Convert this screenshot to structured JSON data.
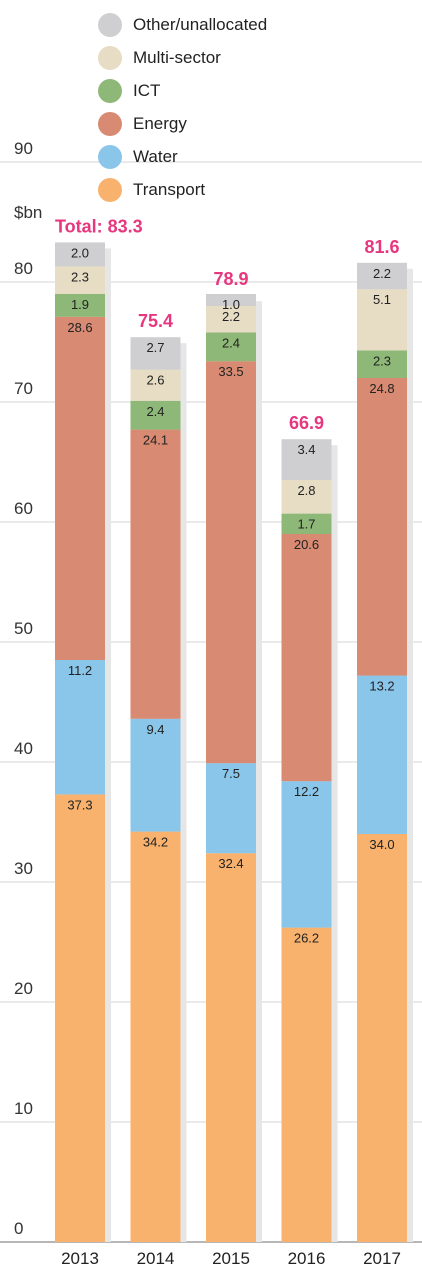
{
  "chart_data": {
    "type": "bar",
    "stacked": true,
    "unit_label": "$bn",
    "categories": [
      "2013",
      "2014",
      "2015",
      "2016",
      "2017"
    ],
    "series": [
      {
        "name": "Transport",
        "color": "#f8b26d",
        "values": [
          37.3,
          34.2,
          32.4,
          26.2,
          34.0
        ]
      },
      {
        "name": "Water",
        "color": "#8ac6ea",
        "values": [
          11.2,
          9.4,
          7.5,
          12.2,
          13.2
        ]
      },
      {
        "name": "Energy",
        "color": "#d88a72",
        "values": [
          28.6,
          24.1,
          33.5,
          20.6,
          24.8
        ]
      },
      {
        "name": "ICT",
        "color": "#8db877",
        "values": [
          1.9,
          2.4,
          2.4,
          1.7,
          2.3
        ]
      },
      {
        "name": "Multi-sector",
        "color": "#e7dcc4",
        "values": [
          2.3,
          2.6,
          2.2,
          2.8,
          5.1
        ]
      },
      {
        "name": "Other/unallocated",
        "color": "#cfcfd1",
        "values": [
          2.0,
          2.7,
          1.0,
          3.4,
          2.2
        ]
      }
    ],
    "totals": [
      "Total: 83.3",
      "75.4",
      "78.9",
      "66.9",
      "81.6"
    ],
    "total_values": [
      83.3,
      75.4,
      78.9,
      66.9,
      81.6
    ],
    "y_ticks": [
      "0",
      "10",
      "20",
      "30",
      "40",
      "50",
      "60",
      "70",
      "80",
      "90"
    ],
    "ylim": [
      0,
      90
    ],
    "total_color": "#e6377f",
    "grid": true,
    "legend_position": "top"
  }
}
